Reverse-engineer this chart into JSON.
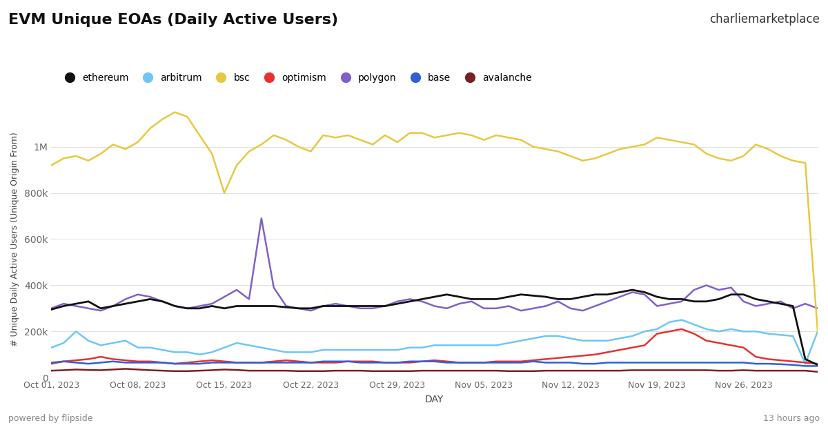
{
  "title": "EVM Unique EOAs (Daily Active Users)",
  "xlabel": "DAY",
  "ylabel": "# Unique Daily Active Users (Unique Origin From)",
  "background_color": "#ffffff",
  "grid_color": "#e0e0e0",
  "ylim": [
    0,
    1200000
  ],
  "yticks": [
    0,
    200000,
    400000,
    600000,
    800000,
    1000000
  ],
  "ytick_labels": [
    "0",
    "200k",
    "400k",
    "600k",
    "800k",
    "1M"
  ],
  "xtick_labels": [
    "Oct 01, 2023",
    "Oct 08, 2023",
    "Oct 15, 2023",
    "Oct 22, 2023",
    "Oct 29, 2023",
    "Nov 05, 2023",
    "Nov 12, 2023",
    "Nov 19, 2023",
    "Nov 26, 2023"
  ],
  "series": {
    "ethereum": {
      "color": "#111111",
      "linewidth": 2.0,
      "zorder": 5
    },
    "arbitrum": {
      "color": "#6ec6f5",
      "linewidth": 1.8,
      "zorder": 4
    },
    "bsc": {
      "color": "#e8c840",
      "linewidth": 1.8,
      "zorder": 6
    },
    "optimism": {
      "color": "#e83030",
      "linewidth": 1.8,
      "zorder": 4
    },
    "polygon": {
      "color": "#8060c8",
      "linewidth": 1.8,
      "zorder": 4
    },
    "base": {
      "color": "#3060d8",
      "linewidth": 1.8,
      "zorder": 4
    },
    "avalanche": {
      "color": "#7a2020",
      "linewidth": 1.8,
      "zorder": 3
    }
  },
  "data": {
    "days": 63,
    "bsc": [
      920000,
      950000,
      960000,
      940000,
      970000,
      1010000,
      990000,
      1020000,
      1080000,
      1120000,
      1150000,
      1130000,
      1050000,
      970000,
      800000,
      920000,
      980000,
      1010000,
      1050000,
      1030000,
      1000000,
      980000,
      1050000,
      1040000,
      1050000,
      1030000,
      1010000,
      1050000,
      1020000,
      1060000,
      1060000,
      1040000,
      1050000,
      1060000,
      1050000,
      1030000,
      1050000,
      1040000,
      1030000,
      1000000,
      990000,
      980000,
      960000,
      940000,
      950000,
      970000,
      990000,
      1000000,
      1010000,
      1040000,
      1030000,
      1020000,
      1010000,
      970000,
      950000,
      940000,
      960000,
      1010000,
      990000,
      960000,
      940000,
      930000,
      200000
    ],
    "polygon": [
      300000,
      320000,
      310000,
      300000,
      290000,
      310000,
      340000,
      360000,
      350000,
      330000,
      310000,
      300000,
      310000,
      320000,
      350000,
      380000,
      340000,
      690000,
      390000,
      310000,
      300000,
      290000,
      310000,
      320000,
      310000,
      300000,
      300000,
      310000,
      330000,
      340000,
      330000,
      310000,
      300000,
      320000,
      330000,
      300000,
      300000,
      310000,
      290000,
      300000,
      310000,
      330000,
      300000,
      290000,
      310000,
      330000,
      350000,
      370000,
      360000,
      310000,
      320000,
      330000,
      380000,
      400000,
      380000,
      390000,
      330000,
      310000,
      320000,
      330000,
      300000,
      320000,
      300000
    ],
    "ethereum": [
      295000,
      310000,
      320000,
      330000,
      300000,
      310000,
      320000,
      330000,
      340000,
      330000,
      310000,
      300000,
      300000,
      310000,
      300000,
      310000,
      310000,
      310000,
      310000,
      305000,
      300000,
      300000,
      310000,
      310000,
      310000,
      310000,
      310000,
      310000,
      320000,
      330000,
      340000,
      350000,
      360000,
      350000,
      340000,
      340000,
      340000,
      350000,
      360000,
      355000,
      350000,
      340000,
      340000,
      350000,
      360000,
      360000,
      370000,
      380000,
      370000,
      350000,
      340000,
      340000,
      330000,
      330000,
      340000,
      360000,
      360000,
      340000,
      330000,
      320000,
      310000,
      80000,
      55000
    ],
    "arbitrum": [
      130000,
      150000,
      200000,
      160000,
      140000,
      150000,
      160000,
      130000,
      130000,
      120000,
      110000,
      110000,
      100000,
      110000,
      130000,
      150000,
      140000,
      130000,
      120000,
      110000,
      110000,
      110000,
      120000,
      120000,
      120000,
      120000,
      120000,
      120000,
      120000,
      130000,
      130000,
      140000,
      140000,
      140000,
      140000,
      140000,
      140000,
      150000,
      160000,
      170000,
      180000,
      180000,
      170000,
      160000,
      160000,
      160000,
      170000,
      180000,
      200000,
      210000,
      240000,
      250000,
      230000,
      210000,
      200000,
      210000,
      200000,
      200000,
      190000,
      185000,
      180000,
      60000,
      200000
    ],
    "optimism": [
      60000,
      70000,
      75000,
      80000,
      90000,
      80000,
      75000,
      70000,
      70000,
      65000,
      60000,
      65000,
      70000,
      75000,
      70000,
      65000,
      65000,
      65000,
      70000,
      75000,
      70000,
      65000,
      65000,
      65000,
      70000,
      70000,
      70000,
      65000,
      65000,
      65000,
      70000,
      75000,
      70000,
      65000,
      65000,
      65000,
      70000,
      70000,
      70000,
      75000,
      80000,
      85000,
      90000,
      95000,
      100000,
      110000,
      120000,
      130000,
      140000,
      190000,
      200000,
      210000,
      190000,
      160000,
      150000,
      140000,
      130000,
      90000,
      80000,
      75000,
      70000,
      65000,
      60000
    ],
    "base": [
      65000,
      70000,
      65000,
      60000,
      65000,
      70000,
      65000,
      65000,
      65000,
      65000,
      60000,
      60000,
      60000,
      65000,
      65000,
      65000,
      65000,
      65000,
      65000,
      65000,
      65000,
      65000,
      70000,
      70000,
      70000,
      65000,
      65000,
      65000,
      65000,
      70000,
      70000,
      70000,
      65000,
      65000,
      65000,
      65000,
      65000,
      65000,
      65000,
      70000,
      65000,
      65000,
      65000,
      60000,
      60000,
      65000,
      65000,
      65000,
      65000,
      65000,
      65000,
      65000,
      65000,
      65000,
      65000,
      65000,
      65000,
      60000,
      60000,
      58000,
      55000,
      50000,
      50000
    ],
    "avalanche": [
      30000,
      32000,
      35000,
      33000,
      32000,
      35000,
      38000,
      35000,
      32000,
      30000,
      28000,
      28000,
      30000,
      32000,
      35000,
      33000,
      30000,
      30000,
      30000,
      30000,
      28000,
      28000,
      28000,
      30000,
      30000,
      30000,
      28000,
      28000,
      28000,
      28000,
      30000,
      30000,
      30000,
      30000,
      30000,
      30000,
      30000,
      28000,
      28000,
      28000,
      30000,
      30000,
      30000,
      30000,
      30000,
      30000,
      30000,
      32000,
      32000,
      32000,
      32000,
      32000,
      32000,
      32000,
      30000,
      30000,
      32000,
      30000,
      30000,
      30000,
      30000,
      30000,
      25000
    ]
  },
  "legend_items": [
    "ethereum",
    "arbitrum",
    "bsc",
    "optimism",
    "polygon",
    "base",
    "avalanche"
  ],
  "legend_colors": [
    "#111111",
    "#6ec6f5",
    "#e8c840",
    "#e83030",
    "#8060c8",
    "#3060d8",
    "#7a2020"
  ],
  "footer_left": "powered by flipside",
  "footer_right": "13 hours ago"
}
